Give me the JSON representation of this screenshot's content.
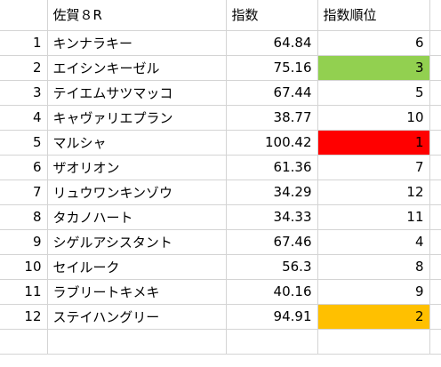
{
  "headers": {
    "race": "佐賀８R",
    "index": "指数",
    "rank": "指数順位"
  },
  "colors": {
    "rank_1": "#ff0000",
    "rank_2": "#ffc000",
    "rank_3": "#92d050"
  },
  "rows": [
    {
      "no": "1",
      "name": "キンナラキー",
      "index": "64.84",
      "rank": "6",
      "highlight": ""
    },
    {
      "no": "2",
      "name": "エイシンキーゼル",
      "index": "75.16",
      "rank": "3",
      "highlight": "green"
    },
    {
      "no": "3",
      "name": "テイエムサツマッコ",
      "index": "67.44",
      "rank": "5",
      "highlight": ""
    },
    {
      "no": "4",
      "name": "キャヴァリエプラン",
      "index": "38.77",
      "rank": "10",
      "highlight": ""
    },
    {
      "no": "5",
      "name": "マルシャ",
      "index": "100.42",
      "rank": "1",
      "highlight": "red"
    },
    {
      "no": "6",
      "name": "ザオリオン",
      "index": "61.36",
      "rank": "7",
      "highlight": ""
    },
    {
      "no": "7",
      "name": "リュウワンキンゾウ",
      "index": "34.29",
      "rank": "12",
      "highlight": ""
    },
    {
      "no": "8",
      "name": "タカノハート",
      "index": "34.33",
      "rank": "11",
      "highlight": ""
    },
    {
      "no": "9",
      "name": "シゲルアシスタント",
      "index": "67.46",
      "rank": "4",
      "highlight": ""
    },
    {
      "no": "10",
      "name": "セイルーク",
      "index": "56.3",
      "rank": "8",
      "highlight": ""
    },
    {
      "no": "11",
      "name": "ラブリートキメキ",
      "index": "40.16",
      "rank": "9",
      "highlight": ""
    },
    {
      "no": "12",
      "name": "ステイハングリー",
      "index": "94.91",
      "rank": "2",
      "highlight": "orange"
    }
  ]
}
